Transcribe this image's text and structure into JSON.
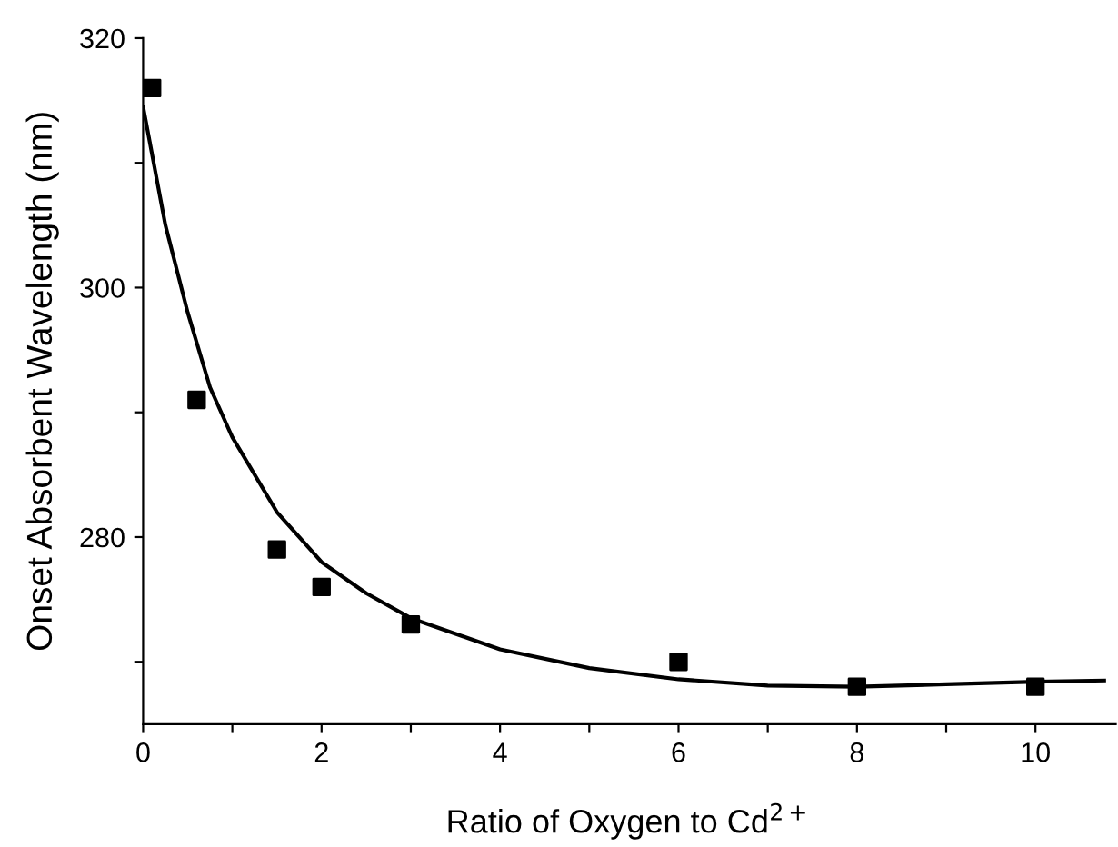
{
  "chart_data": {
    "type": "scatter",
    "xlabel": "Ratio of Oxygen to Cd$^{2+}$",
    "ylabel": "Onset Absorbent Wavelength (nm)",
    "x": [
      0.1,
      0.6,
      1.5,
      2,
      3,
      6,
      8,
      10
    ],
    "series": [
      {
        "color": "#000000",
        "marker": "square",
        "values": [
          316,
          291,
          279,
          276,
          273,
          270,
          268,
          268
        ]
      },
      {
        "type": "line",
        "color": "#000000",
        "line_style": "solid",
        "x": [
          0,
          0.25,
          0.5,
          0.75,
          1,
          1.5,
          2,
          2.5,
          3,
          4,
          5,
          6,
          7,
          8,
          9,
          10,
          10.77
        ],
        "values": [
          314.5,
          305,
          298,
          292,
          288,
          282,
          278,
          275.5,
          273.5,
          271,
          269.5,
          268.6,
          268.1,
          268,
          268.2,
          268.4,
          268.5
        ]
      }
    ],
    "xlim": [
      0,
      10.9
    ],
    "ylim": [
      265,
      320
    ],
    "xticks": [
      0,
      {
        "value": 1,
        "label": null
      },
      2,
      {
        "value": 3,
        "label": null
      },
      4,
      {
        "value": 5,
        "label": null
      },
      6,
      {
        "value": 7,
        "label": null
      },
      8,
      {
        "value": 9,
        "label": null
      },
      10
    ],
    "yticks": [
      {
        "value": 270,
        "label": null
      },
      280,
      {
        "value": 290,
        "label": null
      },
      300,
      {
        "value": 310,
        "label": null
      },
      320
    ],
    "grid": false,
    "legend": false
  }
}
